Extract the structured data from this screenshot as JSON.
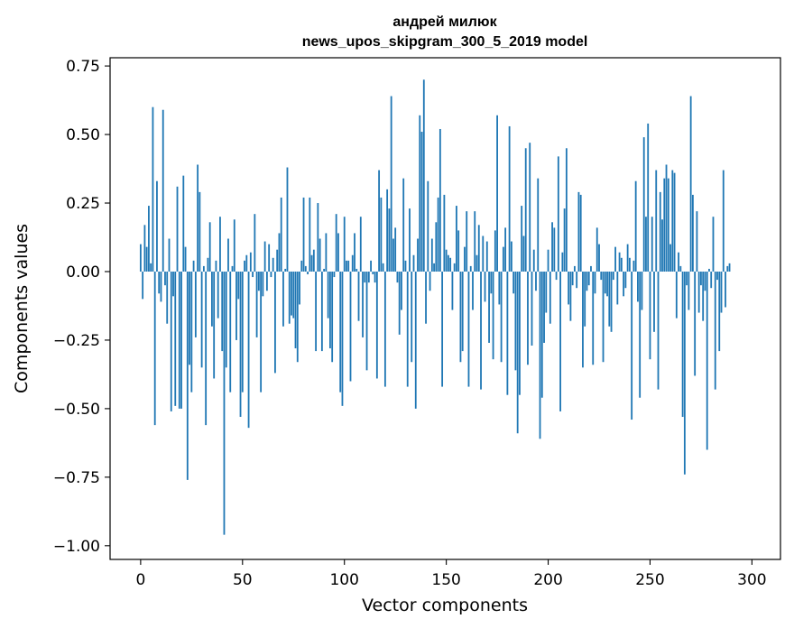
{
  "chart_data": {
    "type": "bar",
    "title_lines": [
      "андрей милюк",
      "news_upos_skipgram_300_5_2019 model"
    ],
    "xlabel": "Vector components",
    "ylabel": "Components values",
    "xlim": [
      -15,
      314
    ],
    "ylim": [
      -1.05,
      0.78
    ],
    "xticks": [
      0,
      50,
      100,
      150,
      200,
      250,
      300
    ],
    "xtick_labels": [
      "0",
      "50",
      "100",
      "150",
      "200",
      "250",
      "300"
    ],
    "yticks": [
      -1.0,
      -0.75,
      -0.5,
      -0.25,
      0.0,
      0.25,
      0.5,
      0.75
    ],
    "ytick_labels": [
      "−1.00",
      "−0.75",
      "−0.50",
      "−0.25",
      "0.00",
      "0.25",
      "0.50",
      "0.75"
    ],
    "bar_color": "#1f77b4",
    "categories_start": 0,
    "values": [
      0.1,
      -0.1,
      0.17,
      0.09,
      0.24,
      0.03,
      0.6,
      -0.56,
      0.33,
      -0.08,
      -0.11,
      0.59,
      -0.05,
      -0.19,
      0.12,
      -0.51,
      -0.09,
      -0.49,
      0.31,
      -0.5,
      -0.5,
      0.35,
      0.09,
      -0.76,
      -0.34,
      -0.44,
      0.04,
      -0.24,
      0.39,
      0.29,
      -0.35,
      0.02,
      -0.56,
      0.05,
      0.18,
      -0.2,
      -0.39,
      0.04,
      -0.17,
      0.2,
      -0.29,
      -0.96,
      -0.35,
      0.12,
      -0.44,
      0.02,
      0.19,
      -0.25,
      -0.1,
      -0.53,
      -0.44,
      0.04,
      0.06,
      -0.57,
      0.07,
      -0.02,
      0.21,
      -0.24,
      -0.07,
      -0.44,
      -0.09,
      0.11,
      -0.07,
      0.1,
      -0.02,
      0.05,
      -0.37,
      0.08,
      0.14,
      0.27,
      -0.2,
      0.01,
      0.38,
      -0.19,
      -0.16,
      -0.17,
      -0.28,
      -0.33,
      -0.12,
      0.04,
      0.27,
      0.02,
      -0.01,
      0.27,
      0.06,
      0.08,
      -0.29,
      0.25,
      0.12,
      -0.29,
      0.01,
      0.14,
      -0.17,
      -0.28,
      -0.33,
      -0.02,
      0.21,
      0.14,
      -0.44,
      -0.49,
      0.2,
      0.04,
      0.04,
      -0.4,
      0.06,
      0.14,
      0.01,
      -0.18,
      0.2,
      -0.24,
      -0.04,
      -0.36,
      -0.04,
      0.04,
      -0.01,
      -0.04,
      -0.39,
      0.37,
      0.27,
      0.03,
      -0.42,
      0.3,
      0.23,
      0.64,
      0.12,
      0.16,
      -0.04,
      -0.23,
      -0.14,
      0.34,
      0.04,
      -0.42,
      0.23,
      -0.33,
      0.06,
      -0.5,
      0.12,
      0.57,
      0.51,
      0.7,
      -0.19,
      0.33,
      -0.07,
      0.12,
      0.03,
      0.18,
      0.27,
      0.52,
      -0.42,
      0.28,
      0.08,
      0.06,
      0.05,
      -0.14,
      0.03,
      0.24,
      0.15,
      -0.33,
      -0.29,
      0.09,
      0.22,
      -0.42,
      0.02,
      -0.14,
      0.22,
      0.06,
      0.17,
      -0.43,
      0.13,
      -0.11,
      0.11,
      -0.26,
      -0.08,
      -0.32,
      0.15,
      0.57,
      -0.12,
      -0.33,
      0.09,
      0.16,
      -0.45,
      0.53,
      0.11,
      -0.08,
      -0.36,
      -0.59,
      -0.45,
      0.24,
      0.13,
      0.45,
      -0.34,
      0.47,
      -0.27,
      0.08,
      -0.07,
      0.34,
      -0.61,
      -0.46,
      -0.26,
      -0.15,
      0.08,
      -0.19,
      0.18,
      0.16,
      -0.03,
      0.42,
      -0.51,
      0.07,
      0.23,
      0.45,
      -0.12,
      -0.18,
      -0.05,
      0.02,
      -0.06,
      0.29,
      0.28,
      -0.35,
      -0.2,
      -0.07,
      -0.05,
      0.02,
      -0.34,
      -0.08,
      0.16,
      0.1,
      -0.03,
      -0.33,
      -0.08,
      -0.09,
      -0.2,
      -0.22,
      -0.03,
      0.09,
      -0.12,
      0.07,
      0.05,
      -0.09,
      -0.06,
      0.1,
      0.05,
      -0.54,
      0.04,
      0.33,
      -0.11,
      -0.46,
      -0.14,
      0.49,
      0.2,
      0.54,
      -0.32,
      0.2,
      -0.22,
      0.37,
      -0.43,
      0.29,
      0.19,
      0.34,
      0.39,
      0.34,
      0.1,
      0.37,
      0.36,
      -0.17,
      0.07,
      0.02,
      -0.53,
      -0.74,
      -0.05,
      -0.14,
      0.64,
      0.28,
      -0.38,
      0.22,
      -0.15,
      -0.05,
      -0.18,
      -0.07,
      -0.65,
      0.01,
      -0.06,
      0.2,
      -0.43,
      -0.03,
      -0.29,
      -0.15,
      0.37,
      -0.13,
      0.02,
      0.03
    ]
  }
}
